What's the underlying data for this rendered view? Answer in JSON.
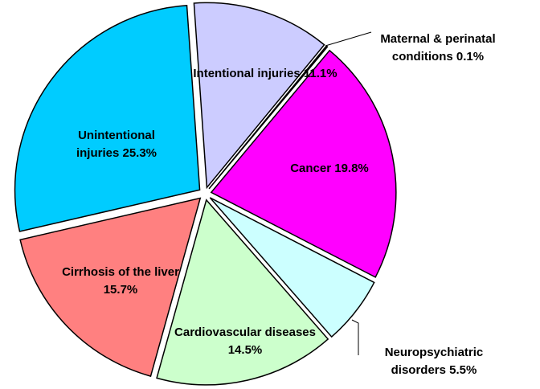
{
  "chart_data": {
    "type": "pie",
    "categories": [
      "Intentional injuries",
      "Maternal & perinatal conditions",
      "Cancer",
      "Neuropsychiatric disorders",
      "Cardiovascular diseases",
      "Cirrhosis of the liver",
      "Unintentional injuries"
    ],
    "values": [
      11.1,
      0.1,
      19.8,
      5.5,
      14.5,
      15.7,
      25.3
    ],
    "value_labels": [
      "11.1%",
      "0.1%",
      "19.8%",
      "5.5%",
      "14.5%",
      "15.7%",
      "25.3%"
    ],
    "colors": [
      "#ccccff",
      "#993366",
      "#ff00ff",
      "#ccffff",
      "#ccffcc",
      "#ff8080",
      "#00ccff"
    ]
  }
}
